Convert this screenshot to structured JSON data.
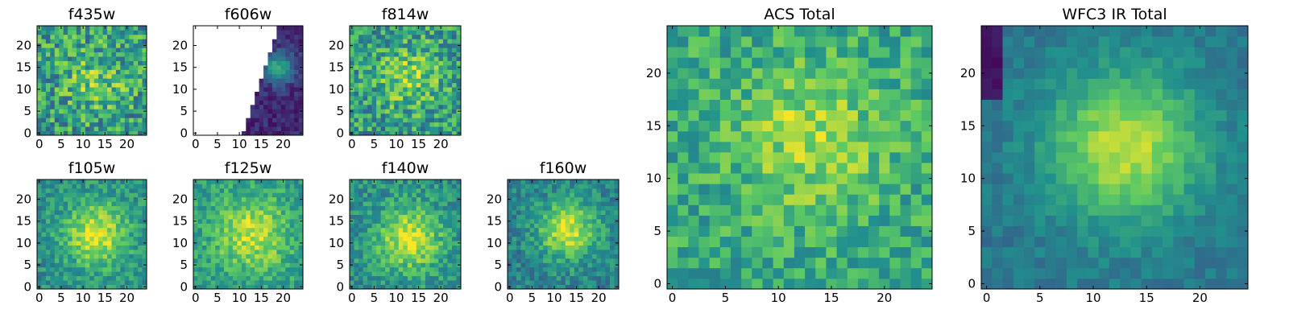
{
  "chart_data": [
    {
      "type": "heatmap",
      "title": "f435w",
      "grid_size": 25,
      "blob": {
        "cx": 13,
        "cy": 12,
        "sigma": 5,
        "amp": 0.2
      },
      "noise": 0.55,
      "base": 0.55,
      "seed": 11,
      "xticks": [
        "0",
        "5",
        "10",
        "15",
        "20"
      ],
      "yticks": [
        "0",
        "5",
        "10",
        "15",
        "20"
      ]
    },
    {
      "type": "heatmap",
      "title": "f606w",
      "grid_size": 25,
      "blob": {
        "cx": 19,
        "cy": 15,
        "sigma": 2.5,
        "amp": 0.5
      },
      "noise": 0.18,
      "base": 0.12,
      "seed": 23,
      "masked_region": "left-diagonal",
      "mask_color": "#ffffff",
      "xticks": [
        "0",
        "5",
        "10",
        "15",
        "20"
      ],
      "yticks": [
        "0",
        "5",
        "10",
        "15",
        "20"
      ]
    },
    {
      "type": "heatmap",
      "title": "f814w",
      "grid_size": 25,
      "blob": {
        "cx": 13,
        "cy": 13,
        "sigma": 5,
        "amp": 0.25
      },
      "noise": 0.5,
      "base": 0.55,
      "seed": 37,
      "xticks": [
        "0",
        "5",
        "10",
        "15",
        "20"
      ],
      "yticks": [
        "0",
        "5",
        "10",
        "15",
        "20"
      ]
    },
    {
      "type": "heatmap",
      "title": "f105w",
      "grid_size": 25,
      "blob": {
        "cx": 13,
        "cy": 12,
        "sigma": 5,
        "amp": 0.45
      },
      "noise": 0.3,
      "base": 0.5,
      "seed": 41,
      "xticks": [
        "0",
        "5",
        "10",
        "15",
        "20"
      ],
      "yticks": [
        "0",
        "5",
        "10",
        "15",
        "20"
      ]
    },
    {
      "type": "heatmap",
      "title": "f125w",
      "grid_size": 25,
      "blob": {
        "cx": 13,
        "cy": 12,
        "sigma": 6,
        "amp": 0.35
      },
      "noise": 0.3,
      "base": 0.55,
      "seed": 53,
      "xticks": [
        "0",
        "5",
        "10",
        "15",
        "20"
      ],
      "yticks": [
        "0",
        "5",
        "10",
        "15",
        "20"
      ]
    },
    {
      "type": "heatmap",
      "title": "f140w",
      "grid_size": 25,
      "blob": {
        "cx": 13,
        "cy": 11,
        "sigma": 5,
        "amp": 0.45
      },
      "noise": 0.32,
      "base": 0.5,
      "seed": 67,
      "xticks": [
        "0",
        "5",
        "10",
        "15",
        "20"
      ],
      "yticks": [
        "0",
        "5",
        "10",
        "15",
        "20"
      ]
    },
    {
      "type": "heatmap",
      "title": "f160w",
      "grid_size": 25,
      "blob": {
        "cx": 13,
        "cy": 13,
        "sigma": 4.5,
        "amp": 0.5
      },
      "noise": 0.3,
      "base": 0.45,
      "seed": 79,
      "xticks": [
        "0",
        "5",
        "10",
        "15",
        "20"
      ],
      "yticks": [
        "0",
        "5",
        "10",
        "15",
        "20"
      ]
    },
    {
      "type": "heatmap",
      "title": "ACS Total",
      "grid_size": 25,
      "blob": {
        "cx": 13,
        "cy": 14,
        "sigma": 5,
        "amp": 0.25
      },
      "noise": 0.35,
      "base": 0.6,
      "seed": 97,
      "xticks": [
        "0",
        "5",
        "10",
        "15",
        "20"
      ],
      "yticks": [
        "0",
        "5",
        "10",
        "15",
        "20"
      ]
    },
    {
      "type": "heatmap",
      "title": "WFC3 IR Total",
      "grid_size": 25,
      "blob": {
        "cx": 13,
        "cy": 13,
        "sigma": 5,
        "amp": 0.5
      },
      "noise": 0.15,
      "base": 0.4,
      "seed": 113,
      "dark_patch": "top-left",
      "xticks": [
        "0",
        "5",
        "10",
        "15",
        "20"
      ],
      "yticks": [
        "0",
        "5",
        "10",
        "15",
        "20"
      ]
    }
  ],
  "colormap": "viridis",
  "colormap_stops": [
    "#440154",
    "#3b528b",
    "#21908d",
    "#5dc963",
    "#fde725"
  ]
}
